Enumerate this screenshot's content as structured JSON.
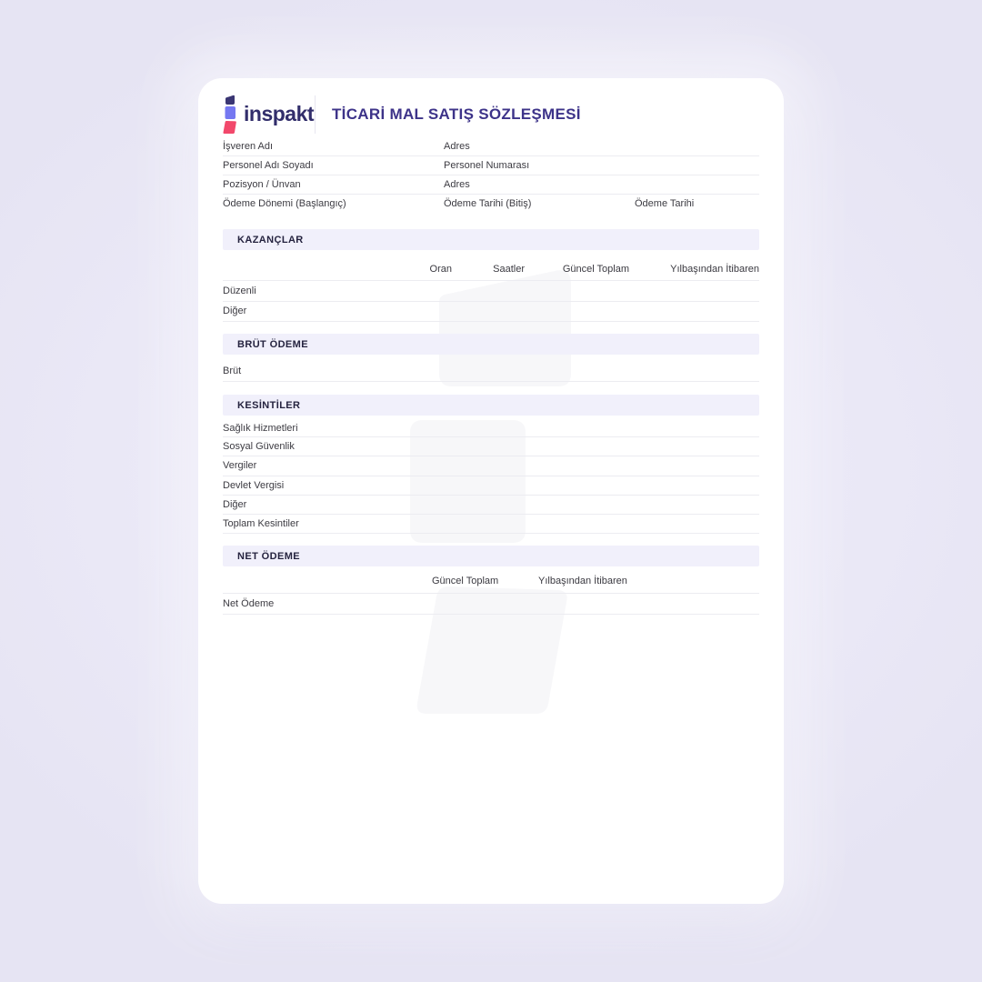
{
  "brand": {
    "wordmark": "inspakt",
    "logo_colors": {
      "top": "#3a3673",
      "middle": "#7578f1",
      "bottom": "#f2486b"
    }
  },
  "document": {
    "title": "TİCARİ MAL SATIŞ SÖZLEŞMESİ"
  },
  "colors": {
    "title_text": "#3d3389",
    "section_bar_bg": "#f1f0fb",
    "section_title_text": "#25233f",
    "label_text": "#3c3b42",
    "row_divider": "#ececf1",
    "page_background": "#ebe9f7",
    "card_background": "#ffffff",
    "watermark": "#f7f7f9"
  },
  "info_table": {
    "rows": [
      [
        "İşveren Adı",
        "Adres",
        ""
      ],
      [
        "Personel Adı Soyadı",
        "Personel Numarası",
        ""
      ],
      [
        "Pozisyon / Ünvan",
        "Adres",
        ""
      ],
      [
        "Ödeme Dönemi (Başlangıç)",
        "Ödeme Tarihi (Bitiş)",
        "Ödeme Tarihi"
      ]
    ]
  },
  "sections": [
    {
      "title": "KAZANÇLAR",
      "columns": [
        "Oran",
        "Saatler",
        "Güncel Toplam",
        "Yılbaşından İtibaren"
      ],
      "rows": [
        "Düzenli",
        "Diğer"
      ]
    },
    {
      "title": "BRÜT ÖDEME",
      "columns": [],
      "rows": [
        "Brüt"
      ]
    },
    {
      "title": "KESİNTİLER",
      "columns": [],
      "rows": [
        "Sağlık Hizmetleri",
        "Sosyal Güvenlik",
        "Vergiler",
        "Devlet Vergisi",
        "Diğer",
        "Toplam Kesintiler"
      ]
    },
    {
      "title": "NET ÖDEME",
      "columns": [
        "Güncel Toplam",
        "Yılbaşından İtibaren"
      ],
      "rows": [
        "Net Ödeme"
      ]
    }
  ]
}
